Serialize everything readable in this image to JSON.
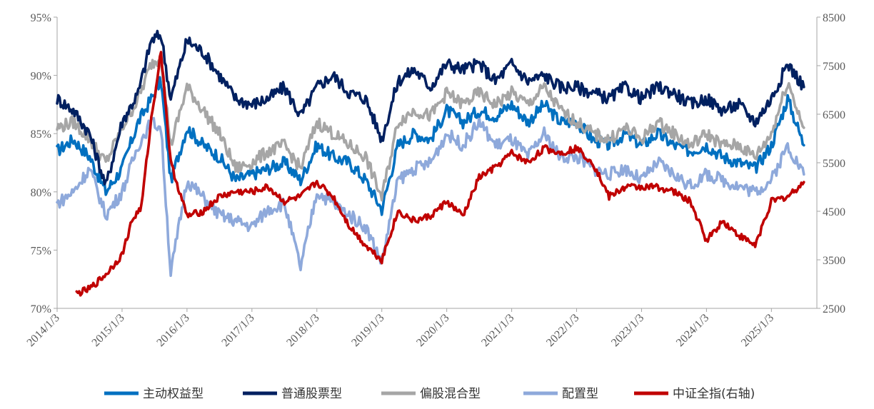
{
  "chart_data": {
    "type": "line",
    "title": "",
    "x_ticks": [
      "2014/1/3",
      "2015/1/3",
      "2016/1/3",
      "2017/1/3",
      "2018/1/3",
      "2019/1/3",
      "2020/1/3",
      "2021/1/3",
      "2022/1/3",
      "2023/1/3",
      "2024/1/3",
      "2025/1/3"
    ],
    "y_left": {
      "ticks": [
        "70%",
        "75%",
        "80%",
        "85%",
        "90%",
        "95%"
      ],
      "range": [
        70,
        95
      ],
      "unit": "%"
    },
    "y_right": {
      "ticks": [
        "2500",
        "3500",
        "4500",
        "5500",
        "6500",
        "7500",
        "8500"
      ],
      "range": [
        2500,
        8500
      ]
    },
    "grid": false,
    "legend_position": "bottom",
    "series": [
      {
        "name": "主动权益型",
        "axis": "left",
        "color": "#0070C0",
        "x": [
          2014.0,
          2014.25,
          2014.5,
          2014.75,
          2015.0,
          2015.25,
          2015.45,
          2015.6,
          2015.75,
          2016.0,
          2016.25,
          2016.5,
          2016.75,
          2017.0,
          2017.25,
          2017.5,
          2017.75,
          2018.0,
          2018.25,
          2018.5,
          2018.75,
          2019.0,
          2019.25,
          2019.5,
          2019.75,
          2020.0,
          2020.25,
          2020.5,
          2020.75,
          2021.0,
          2021.25,
          2021.5,
          2021.75,
          2022.0,
          2022.25,
          2022.5,
          2022.75,
          2023.0,
          2023.25,
          2023.5,
          2023.75,
          2024.0,
          2024.25,
          2024.5,
          2024.75,
          2025.0,
          2025.25,
          2025.5
        ],
        "values": [
          83.5,
          84.5,
          83,
          80,
          82,
          86,
          88,
          89.5,
          81,
          85.5,
          84,
          83,
          81,
          81.5,
          82,
          82.5,
          81,
          84,
          83,
          82.5,
          81,
          78.5,
          84,
          85,
          84.5,
          87,
          86,
          87,
          86.5,
          87.5,
          86,
          87.5,
          86,
          86,
          84.5,
          84,
          85,
          84,
          85,
          84,
          83.5,
          84,
          83,
          82.5,
          82,
          84,
          88,
          84
        ]
      },
      {
        "name": "普通股票型",
        "axis": "left",
        "color": "#002060",
        "x": [
          2014.0,
          2014.25,
          2014.5,
          2014.75,
          2015.0,
          2015.25,
          2015.45,
          2015.6,
          2015.75,
          2016.0,
          2016.25,
          2016.5,
          2016.75,
          2017.0,
          2017.25,
          2017.5,
          2017.75,
          2018.0,
          2018.25,
          2018.5,
          2018.75,
          2019.0,
          2019.25,
          2019.5,
          2019.75,
          2020.0,
          2020.25,
          2020.5,
          2020.75,
          2021.0,
          2021.25,
          2021.5,
          2021.75,
          2022.0,
          2022.25,
          2022.5,
          2022.75,
          2023.0,
          2023.25,
          2023.5,
          2023.75,
          2024.0,
          2024.25,
          2024.5,
          2024.75,
          2025.0,
          2025.25,
          2025.5
        ],
        "values": [
          88,
          87,
          85,
          80.5,
          86,
          88.5,
          93,
          93.5,
          88,
          93,
          92,
          90,
          88,
          87.5,
          88,
          89,
          86.5,
          89,
          90,
          88.5,
          88,
          84.5,
          89.5,
          90.5,
          89,
          91,
          90.5,
          91,
          89.5,
          91,
          89.5,
          90,
          89,
          89,
          88.5,
          88,
          89,
          88,
          89,
          88.5,
          87.5,
          88,
          87,
          87.5,
          86,
          88,
          91,
          89
        ]
      },
      {
        "name": "偏股混合型",
        "axis": "left",
        "color": "#A6A6A6",
        "x": [
          2014.0,
          2014.25,
          2014.5,
          2014.75,
          2015.0,
          2015.25,
          2015.45,
          2015.6,
          2015.75,
          2016.0,
          2016.25,
          2016.5,
          2016.75,
          2017.0,
          2017.25,
          2017.5,
          2017.75,
          2018.0,
          2018.25,
          2018.5,
          2018.75,
          2019.0,
          2019.25,
          2019.5,
          2019.75,
          2020.0,
          2020.25,
          2020.5,
          2020.75,
          2021.0,
          2021.25,
          2021.5,
          2021.75,
          2022.0,
          2022.25,
          2022.5,
          2022.75,
          2023.0,
          2023.25,
          2023.5,
          2023.75,
          2024.0,
          2024.25,
          2024.5,
          2024.75,
          2025.0,
          2025.25,
          2025.5
        ],
        "values": [
          85.5,
          86,
          84.5,
          82.5,
          85.5,
          88,
          91,
          91.5,
          84,
          89,
          87,
          85,
          82,
          82.5,
          83.5,
          84,
          82,
          86,
          85,
          84,
          83,
          79.5,
          86,
          87,
          86.5,
          88.5,
          87.5,
          88.5,
          87.5,
          88.5,
          87.5,
          89,
          87,
          86,
          85,
          84.5,
          85.5,
          84.5,
          86,
          85,
          84,
          85,
          84,
          84,
          83,
          85,
          89.5,
          85.5
        ]
      },
      {
        "name": "配置型",
        "axis": "left",
        "color": "#8EA9DB",
        "x": [
          2014.0,
          2014.25,
          2014.5,
          2014.75,
          2015.0,
          2015.25,
          2015.45,
          2015.6,
          2015.75,
          2016.0,
          2016.25,
          2016.5,
          2016.75,
          2017.0,
          2017.25,
          2017.5,
          2017.75,
          2018.0,
          2018.25,
          2018.5,
          2018.75,
          2019.0,
          2019.25,
          2019.5,
          2019.75,
          2020.0,
          2020.25,
          2020.5,
          2020.75,
          2021.0,
          2021.25,
          2021.5,
          2021.75,
          2022.0,
          2022.25,
          2022.5,
          2022.75,
          2023.0,
          2023.25,
          2023.5,
          2023.75,
          2024.0,
          2024.25,
          2024.5,
          2024.75,
          2025.0,
          2025.25,
          2025.5
        ],
        "values": [
          79,
          80,
          82,
          78,
          80,
          84,
          86,
          85.5,
          73,
          81,
          79.5,
          78,
          77.5,
          77,
          78.5,
          79,
          73.5,
          80,
          79,
          78,
          77,
          74,
          81,
          82,
          82.5,
          85,
          84,
          86,
          84,
          84.5,
          83,
          85,
          83,
          83,
          82,
          81.5,
          82,
          81,
          82.5,
          81.5,
          80.5,
          81.5,
          81,
          80.5,
          80,
          81,
          84,
          81.5
        ]
      },
      {
        "name": "中证全指(右轴)",
        "axis": "right",
        "color": "#C00000",
        "x": [
          2014.3,
          2014.5,
          2014.75,
          2015.0,
          2015.15,
          2015.3,
          2015.45,
          2015.6,
          2015.75,
          2016.0,
          2016.25,
          2016.5,
          2016.75,
          2017.0,
          2017.25,
          2017.5,
          2017.75,
          2018.0,
          2018.25,
          2018.5,
          2018.75,
          2019.0,
          2019.25,
          2019.5,
          2019.75,
          2020.0,
          2020.25,
          2020.5,
          2020.75,
          2021.0,
          2021.25,
          2021.5,
          2021.75,
          2022.0,
          2022.25,
          2022.5,
          2022.75,
          2023.0,
          2023.25,
          2023.5,
          2023.75,
          2024.0,
          2024.25,
          2024.5,
          2024.75,
          2025.0,
          2025.25,
          2025.5
        ],
        "values": [
          2800,
          2900,
          3200,
          3600,
          4300,
          4600,
          6400,
          7800,
          5500,
          4400,
          4500,
          4800,
          4900,
          4900,
          5000,
          4700,
          4800,
          5100,
          4800,
          4200,
          3800,
          3500,
          4500,
          4300,
          4400,
          4700,
          4400,
          5200,
          5400,
          5700,
          5500,
          5800,
          5700,
          5800,
          5500,
          4800,
          5000,
          5000,
          5000,
          4900,
          4700,
          3900,
          4300,
          4000,
          3800,
          4700,
          4800,
          5100
        ]
      }
    ]
  }
}
